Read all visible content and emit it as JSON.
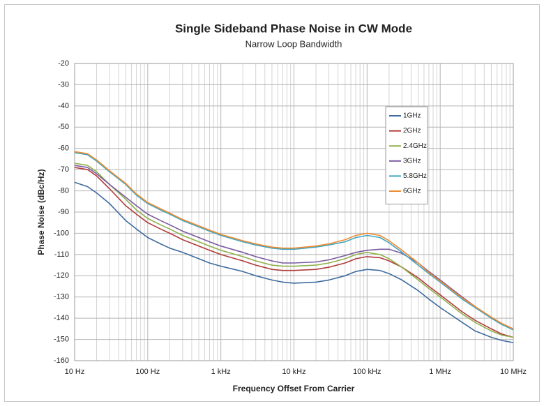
{
  "chart_data": {
    "type": "line",
    "title": "Single Sideband Phase Noise in CW Mode",
    "subtitle": "Narrow Loop Bandwidth",
    "x_label": "Frequency Offset From Carrier",
    "y_label": "Phase Noise (dBc/Hz)",
    "x_log_scale": true,
    "grid": true,
    "legend": "inside upper right",
    "xlim": [
      10,
      10000000
    ],
    "xticks": [
      {
        "value": 10,
        "label": "10 Hz"
      },
      {
        "value": 100,
        "label": "100 Hz"
      },
      {
        "value": 1000,
        "label": "1 kHz"
      },
      {
        "value": 10000,
        "label": "10 kHz"
      },
      {
        "value": 100000,
        "label": "100 kHz"
      },
      {
        "value": 1000000,
        "label": "1 MHz"
      },
      {
        "value": 10000000,
        "label": "10 MHz"
      }
    ],
    "xminorticks": [
      20,
      30,
      40,
      50,
      60,
      70,
      80,
      90,
      200,
      300,
      400,
      500,
      600,
      700,
      800,
      900,
      2000,
      3000,
      4000,
      5000,
      6000,
      7000,
      8000,
      9000,
      20000,
      30000,
      40000,
      50000,
      60000,
      70000,
      80000,
      90000,
      200000,
      300000,
      400000,
      500000,
      600000,
      700000,
      800000,
      900000,
      2000000,
      3000000,
      4000000,
      5000000,
      6000000,
      7000000,
      8000000,
      9000000
    ],
    "ylim": [
      -160,
      -20
    ],
    "yticks": [
      -160,
      -150,
      -140,
      -130,
      -120,
      -110,
      -100,
      -90,
      -80,
      -70,
      -60,
      -50,
      -40,
      -30,
      -20
    ],
    "x": [
      10,
      15,
      20,
      30,
      50,
      70,
      100,
      150,
      200,
      300,
      500,
      700,
      1000,
      2000,
      3000,
      5000,
      7000,
      10000,
      20000,
      30000,
      50000,
      70000,
      100000,
      150000,
      200000,
      300000,
      500000,
      700000,
      1000000,
      2000000,
      3000000,
      5000000,
      7000000,
      10000000
    ],
    "series": [
      {
        "name": "1GHz",
        "color": "#3f6b9e",
        "values": [
          -76,
          -78,
          -81,
          -86,
          -94,
          -98,
          -102,
          -105,
          -107,
          -109,
          -112,
          -114,
          -115.5,
          -118,
          -120,
          -122,
          -123,
          -123.5,
          -123,
          -122,
          -120,
          -118,
          -117,
          -117.5,
          -119,
          -122,
          -127,
          -131,
          -135,
          -142,
          -146,
          -149,
          -150.5,
          -151.5
        ]
      },
      {
        "name": "2GHz",
        "color": "#b03a3a",
        "values": [
          -69,
          -70,
          -73,
          -79,
          -87,
          -91,
          -95,
          -98,
          -100,
          -103,
          -106,
          -108,
          -110,
          -113,
          -115,
          -117,
          -117.5,
          -117.5,
          -117,
          -116,
          -114,
          -112,
          -111,
          -111.5,
          -113,
          -116,
          -121,
          -125,
          -129,
          -137,
          -141,
          -145,
          -147.5,
          -149
        ]
      },
      {
        "name": "2.4GHz",
        "color": "#8fb04c",
        "values": [
          -67,
          -68,
          -71,
          -77,
          -84,
          -89,
          -93,
          -96,
          -98,
          -101,
          -104,
          -106,
          -108,
          -111,
          -113,
          -115,
          -115.5,
          -115.5,
          -115,
          -114,
          -112,
          -110,
          -109,
          -110,
          -112,
          -116,
          -122,
          -126,
          -130,
          -138,
          -142,
          -146,
          -148,
          -149
        ]
      },
      {
        "name": "3GHz",
        "color": "#7a5aa0",
        "values": [
          -68,
          -69,
          -72,
          -77,
          -83,
          -87,
          -91,
          -94,
          -96,
          -99,
          -102,
          -104,
          -106,
          -109,
          -111,
          -113,
          -114,
          -114,
          -113.5,
          -112.5,
          -110.5,
          -109,
          -108,
          -107.5,
          -107.5,
          -109.5,
          -114,
          -118,
          -122,
          -130,
          -134.5,
          -140,
          -143,
          -145
        ]
      },
      {
        "name": "5.8GHz",
        "color": "#3fa6c0",
        "values": [
          -62,
          -63,
          -66,
          -71,
          -77,
          -82,
          -86,
          -89,
          -91,
          -94,
          -97,
          -99,
          -101,
          -104,
          -105.5,
          -107,
          -107.5,
          -107.5,
          -106.5,
          -105.5,
          -104,
          -102,
          -101,
          -102,
          -104.5,
          -109,
          -115,
          -119,
          -123,
          -131,
          -135,
          -140,
          -143,
          -145.5
        ]
      },
      {
        "name": "6GHz",
        "color": "#f08a30",
        "values": [
          -61.5,
          -62.5,
          -65.5,
          -70.5,
          -76.5,
          -81.5,
          -85.5,
          -88.5,
          -90.5,
          -93.5,
          -96.5,
          -98.5,
          -100.5,
          -103.5,
          -105,
          -106.5,
          -107,
          -107,
          -106,
          -105,
          -103,
          -101,
          -100,
          -101,
          -103.5,
          -108,
          -114,
          -118.5,
          -122.5,
          -130.5,
          -134.5,
          -139.5,
          -142.5,
          -145
        ]
      }
    ]
  }
}
